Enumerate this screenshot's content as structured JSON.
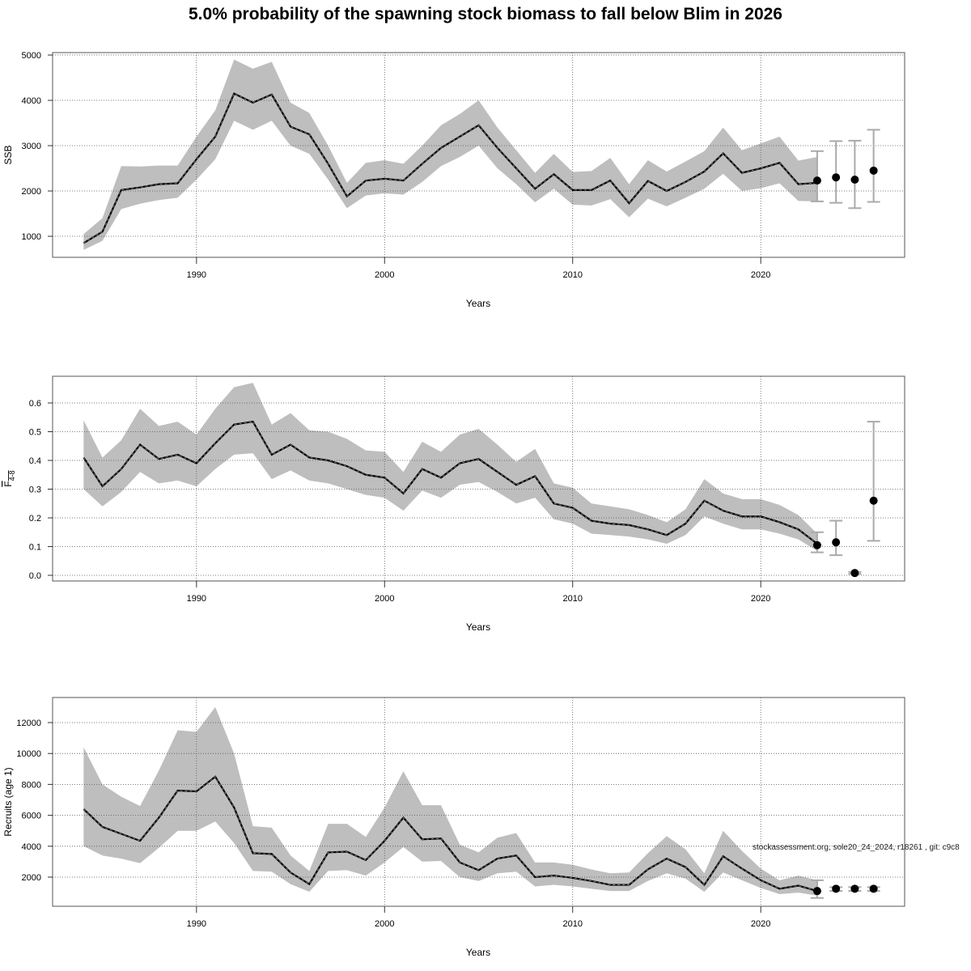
{
  "title": "5.0% probability of the spawning stock biomass to fall below Blim in 2026",
  "watermark": "stockassessment.org, sole20_24_2024, r18261 , git: c9c8",
  "colors": {
    "band": "#bebebe",
    "line": "#000000",
    "errorbar": "#aaaaaa",
    "grid": "#555555"
  },
  "chart_data": [
    {
      "type": "line",
      "id": "ssb",
      "ylabel": "SSB",
      "ylabel_sub": "",
      "xlabel": "Years",
      "xlim": [
        1982.35,
        2027.65
      ],
      "ylim": [
        536,
        5054
      ],
      "xticks": [
        1990,
        2000,
        2010,
        2020
      ],
      "yticks": [
        1000,
        2000,
        3000,
        4000,
        5000
      ],
      "ytick_labels": [
        "1000",
        "2000",
        "3000",
        "4000",
        "5000"
      ],
      "grid": true,
      "x": [
        1984,
        1985,
        1986,
        1987,
        1988,
        1989,
        1990,
        1991,
        1992,
        1993,
        1994,
        1995,
        1996,
        1997,
        1998,
        1999,
        2000,
        2001,
        2002,
        2003,
        2004,
        2005,
        2006,
        2007,
        2008,
        2009,
        2010,
        2011,
        2012,
        2013,
        2014,
        2015,
        2016,
        2017,
        2018,
        2019,
        2020,
        2021,
        2022,
        2023
      ],
      "estimate": [
        850,
        1100,
        2020,
        2080,
        2150,
        2170,
        2700,
        3200,
        4150,
        3950,
        4130,
        3420,
        3250,
        2600,
        1880,
        2230,
        2270,
        2230,
        2600,
        2950,
        3200,
        3450,
        2950,
        2500,
        2050,
        2370,
        2020,
        2020,
        2230,
        1730,
        2220,
        2000,
        2200,
        2430,
        2830,
        2400,
        2500,
        2620,
        2150,
        2180
      ],
      "lower": [
        700,
        900,
        1600,
        1720,
        1800,
        1850,
        2250,
        2700,
        3550,
        3350,
        3550,
        3000,
        2820,
        2250,
        1620,
        1900,
        1950,
        1920,
        2200,
        2550,
        2750,
        3000,
        2500,
        2150,
        1750,
        2050,
        1700,
        1680,
        1820,
        1420,
        1830,
        1660,
        1850,
        2050,
        2380,
        2000,
        2060,
        2170,
        1780,
        1770
      ],
      "upper": [
        1050,
        1400,
        2550,
        2540,
        2560,
        2560,
        3200,
        3780,
        4900,
        4700,
        4850,
        3950,
        3720,
        3000,
        2180,
        2620,
        2680,
        2600,
        3000,
        3450,
        3700,
        4000,
        3400,
        2900,
        2400,
        2820,
        2420,
        2440,
        2730,
        2150,
        2680,
        2430,
        2650,
        2880,
        3400,
        2900,
        3050,
        3200,
        2670,
        2750
      ],
      "forecast": {
        "x": [
          2023,
          2024,
          2025,
          2026
        ],
        "median": [
          2230,
          2300,
          2250,
          2450
        ],
        "lower": [
          1770,
          1740,
          1620,
          1760
        ],
        "upper": [
          2880,
          3100,
          3110,
          3350
        ]
      }
    },
    {
      "type": "line",
      "id": "fbar",
      "ylabel": "F",
      "ylabel_sub": "4-8",
      "xlabel": "Years",
      "xlim": [
        1982.35,
        2027.65
      ],
      "ylim": [
        -0.0197,
        0.693
      ],
      "xticks": [
        1990,
        2000,
        2010,
        2020
      ],
      "yticks": [
        0.0,
        0.1,
        0.2,
        0.3,
        0.4,
        0.5,
        0.6
      ],
      "ytick_labels": [
        "0.0",
        "0.1",
        "0.2",
        "0.3",
        "0.4",
        "0.5",
        "0.6"
      ],
      "grid": true,
      "x": [
        1984,
        1985,
        1986,
        1987,
        1988,
        1989,
        1990,
        1991,
        1992,
        1993,
        1994,
        1995,
        1996,
        1997,
        1998,
        1999,
        2000,
        2001,
        2002,
        2003,
        2004,
        2005,
        2006,
        2007,
        2008,
        2009,
        2010,
        2011,
        2012,
        2013,
        2014,
        2015,
        2016,
        2017,
        2018,
        2019,
        2020,
        2021,
        2022,
        2023
      ],
      "estimate": [
        0.41,
        0.31,
        0.37,
        0.455,
        0.405,
        0.42,
        0.39,
        0.46,
        0.525,
        0.535,
        0.42,
        0.455,
        0.41,
        0.4,
        0.38,
        0.35,
        0.34,
        0.285,
        0.37,
        0.34,
        0.39,
        0.405,
        0.36,
        0.315,
        0.345,
        0.25,
        0.235,
        0.19,
        0.18,
        0.175,
        0.16,
        0.14,
        0.18,
        0.26,
        0.225,
        0.205,
        0.205,
        0.185,
        0.16,
        0.11
      ],
      "lower": [
        0.3,
        0.24,
        0.29,
        0.36,
        0.32,
        0.33,
        0.31,
        0.37,
        0.42,
        0.425,
        0.335,
        0.365,
        0.33,
        0.32,
        0.3,
        0.28,
        0.27,
        0.225,
        0.295,
        0.27,
        0.315,
        0.325,
        0.29,
        0.25,
        0.27,
        0.195,
        0.18,
        0.145,
        0.14,
        0.135,
        0.125,
        0.11,
        0.14,
        0.205,
        0.18,
        0.16,
        0.16,
        0.145,
        0.125,
        0.085
      ],
      "upper": [
        0.54,
        0.41,
        0.47,
        0.58,
        0.52,
        0.535,
        0.49,
        0.58,
        0.655,
        0.67,
        0.525,
        0.565,
        0.505,
        0.5,
        0.475,
        0.435,
        0.43,
        0.36,
        0.465,
        0.43,
        0.49,
        0.51,
        0.455,
        0.395,
        0.44,
        0.32,
        0.305,
        0.25,
        0.24,
        0.23,
        0.21,
        0.185,
        0.23,
        0.335,
        0.285,
        0.265,
        0.265,
        0.245,
        0.21,
        0.145
      ],
      "forecast": {
        "x": [
          2023,
          2024,
          2025,
          2026
        ],
        "median": [
          0.105,
          0.115,
          0.008,
          0.26
        ],
        "lower": [
          0.08,
          0.07,
          0.005,
          0.12
        ],
        "upper": [
          0.15,
          0.19,
          0.012,
          0.535
        ]
      }
    },
    {
      "type": "line",
      "id": "recruits",
      "ylabel": "Recruits (age 1)",
      "ylabel_sub": "",
      "xlabel": "Years",
      "xlim": [
        1982.35,
        2027.65
      ],
      "ylim": [
        115,
        13623
      ],
      "xticks": [
        1990,
        2000,
        2010,
        2020
      ],
      "yticks": [
        2000,
        4000,
        6000,
        8000,
        10000,
        12000
      ],
      "ytick_labels": [
        "2000",
        "4000",
        "6000",
        "8000",
        "10000",
        "12000"
      ],
      "grid": true,
      "x": [
        1984,
        1985,
        1986,
        1987,
        1988,
        1989,
        1990,
        1991,
        1992,
        1993,
        1994,
        1995,
        1996,
        1997,
        1998,
        1999,
        2000,
        2001,
        2002,
        2003,
        2004,
        2005,
        2006,
        2007,
        2008,
        2009,
        2010,
        2011,
        2012,
        2013,
        2014,
        2015,
        2016,
        2017,
        2018,
        2019,
        2020,
        2021,
        2022,
        2023
      ],
      "estimate": [
        6400,
        5250,
        4800,
        4350,
        5850,
        7600,
        7550,
        8500,
        6500,
        3550,
        3500,
        2300,
        1550,
        3600,
        3650,
        3100,
        4350,
        5850,
        4450,
        4500,
        2950,
        2450,
        3200,
        3400,
        2000,
        2100,
        1950,
        1750,
        1500,
        1500,
        2500,
        3200,
        2650,
        1500,
        3350,
        2550,
        1800,
        1250,
        1450,
        1100
      ],
      "lower": [
        4000,
        3400,
        3200,
        2900,
        3900,
        5000,
        5000,
        5600,
        4200,
        2400,
        2350,
        1550,
        1050,
        2400,
        2450,
        2100,
        2950,
        3950,
        3000,
        3050,
        2000,
        1750,
        2250,
        2350,
        1400,
        1500,
        1400,
        1250,
        1100,
        1100,
        1750,
        2250,
        1900,
        1050,
        2300,
        1800,
        1300,
        900,
        1000,
        800
      ],
      "upper": [
        10400,
        8000,
        7200,
        6600,
        8900,
        11500,
        11400,
        13000,
        10000,
        5300,
        5200,
        3400,
        2400,
        5450,
        5450,
        4600,
        6500,
        8850,
        6650,
        6650,
        4100,
        3600,
        4550,
        4850,
        2950,
        2950,
        2800,
        2500,
        2250,
        2300,
        3550,
        4650,
        3800,
        2250,
        5000,
        3700,
        2550,
        1800,
        2100,
        1800
      ],
      "forecast": {
        "x": [
          2023,
          2024,
          2025,
          2026
        ],
        "median": [
          1100,
          1250,
          1250,
          1250
        ],
        "lower": [
          650,
          1100,
          1100,
          1100
        ],
        "upper": [
          1800,
          1350,
          1350,
          1350
        ]
      }
    }
  ]
}
